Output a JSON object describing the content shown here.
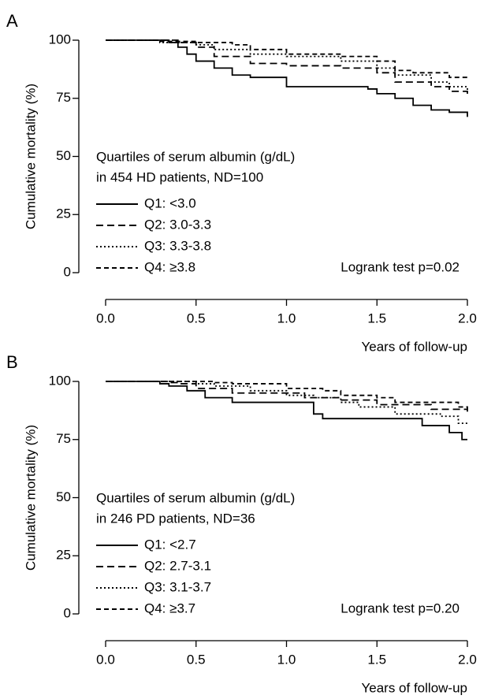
{
  "chart_data": [
    {
      "type": "step",
      "panel": "A",
      "ylabel": "Cumulative mortality (%)",
      "xlabel": "Years of follow-up",
      "legend_title": [
        "Quartiles of serum albumin (g/dL)",
        "in 454 HD patients, ND=100"
      ],
      "annotation": "Logrank test p=0.02",
      "xlim": [
        0,
        2
      ],
      "ylim": [
        0,
        100
      ],
      "xticks": [
        {
          "value": 0,
          "label": "0.0"
        },
        {
          "value": 0.5,
          "label": "0.5"
        },
        {
          "value": 1,
          "label": "1.0"
        },
        {
          "value": 1.5,
          "label": "1.5"
        },
        {
          "value": 2,
          "label": "2.0"
        }
      ],
      "yticks": [
        0,
        25,
        50,
        75,
        100
      ],
      "series": [
        {
          "name": "Q1: <3.0",
          "color": "#000000",
          "dash": "solid",
          "x": [
            0,
            0.35,
            0.4,
            0.45,
            0.5,
            0.6,
            0.7,
            0.8,
            1.0,
            1.45,
            1.5,
            1.6,
            1.7,
            1.8,
            1.9,
            2.0
          ],
          "values": [
            100,
            99,
            97,
            94,
            91,
            88,
            85,
            84,
            80,
            79,
            77,
            75,
            72,
            70,
            69,
            67
          ]
        },
        {
          "name": "Q2: 3.0-3.3",
          "color": "#000000",
          "dash": "dashed",
          "x": [
            0,
            0.4,
            0.5,
            0.6,
            0.8,
            1.0,
            1.3,
            1.5,
            1.6,
            1.8,
            1.9,
            2.0
          ],
          "values": [
            100,
            99,
            97,
            93,
            90,
            89,
            88,
            86,
            82,
            80,
            78,
            76
          ]
        },
        {
          "name": "Q3: 3.3-3.8",
          "color": "#000000",
          "dash": "dotted",
          "x": [
            0,
            0.3,
            0.5,
            0.6,
            0.8,
            1.0,
            1.3,
            1.5,
            1.6,
            1.8,
            1.9,
            2.0
          ],
          "values": [
            100,
            99,
            98,
            96,
            94,
            93,
            91,
            88,
            85,
            82,
            80,
            78
          ]
        },
        {
          "name": "Q4: ≥3.8",
          "color": "#000000",
          "dash": "short",
          "x": [
            0,
            0.3,
            0.5,
            0.7,
            0.8,
            1.0,
            1.3,
            1.5,
            1.6,
            1.7,
            1.9,
            2.0
          ],
          "values": [
            100,
            99.5,
            99,
            98,
            96,
            94,
            93,
            91,
            87,
            86,
            84,
            84
          ]
        }
      ]
    },
    {
      "type": "step",
      "panel": "B",
      "ylabel": "Cumulative mortality (%)",
      "xlabel": "Years of follow-up",
      "legend_title": [
        "Quartiles of serum albumin (g/dL)",
        "in 246 PD patients, ND=36"
      ],
      "annotation": "Logrank test p=0.20",
      "xlim": [
        0,
        2
      ],
      "ylim": [
        0,
        100
      ],
      "xticks": [
        {
          "value": 0,
          "label": "0.0"
        },
        {
          "value": 0.5,
          "label": "0.5"
        },
        {
          "value": 1,
          "label": "1.0"
        },
        {
          "value": 1.5,
          "label": "1.5"
        },
        {
          "value": 2,
          "label": "2.0"
        }
      ],
      "yticks": [
        0,
        25,
        50,
        75,
        100
      ],
      "series": [
        {
          "name": "Q1: <2.7",
          "color": "#000000",
          "dash": "solid",
          "x": [
            0,
            0.3,
            0.35,
            0.45,
            0.55,
            0.7,
            1.15,
            1.2,
            1.75,
            1.9,
            1.97,
            2.0
          ],
          "values": [
            100,
            99,
            98,
            96,
            93,
            91,
            86,
            84,
            81,
            78,
            75,
            75
          ]
        },
        {
          "name": "Q2: 2.7-3.1",
          "color": "#000000",
          "dash": "dashed",
          "x": [
            0,
            0.35,
            0.4,
            0.5,
            0.7,
            1.1,
            1.3,
            1.5,
            1.8,
            2.0
          ],
          "values": [
            100,
            99.5,
            99,
            97,
            95,
            93,
            92,
            90,
            88,
            87
          ]
        },
        {
          "name": "Q3: 3.1-3.7",
          "color": "#000000",
          "dash": "dotted",
          "x": [
            0,
            0.5,
            0.6,
            0.8,
            1.0,
            1.15,
            1.3,
            1.4,
            1.6,
            1.85,
            1.95,
            2.0
          ],
          "values": [
            100,
            99,
            98,
            96,
            94,
            93,
            91,
            89,
            86,
            85,
            82,
            82
          ]
        },
        {
          "name": "Q4: ≥3.7",
          "color": "#000000",
          "dash": "short",
          "x": [
            0,
            0.6,
            0.7,
            1.0,
            1.2,
            1.3,
            1.5,
            1.6,
            1.95,
            2.0
          ],
          "values": [
            100,
            99.5,
            99,
            97,
            96,
            94,
            93,
            91,
            89,
            88
          ]
        }
      ]
    }
  ]
}
